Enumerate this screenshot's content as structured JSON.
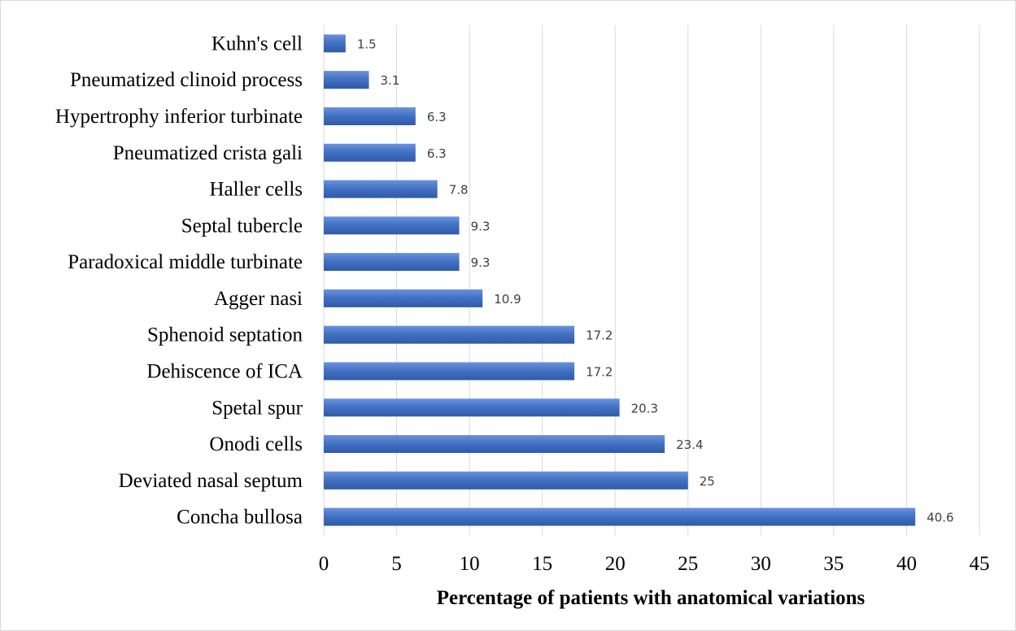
{
  "chart_data": {
    "type": "bar",
    "orientation": "horizontal",
    "categories": [
      "Concha bullosa",
      "Deviated nasal septum",
      "Onodi cells",
      "Spetal spur",
      "Dehiscence of ICA",
      "Sphenoid septation",
      "Agger nasi",
      "Paradoxical middle turbinate",
      "Septal tubercle",
      "Haller cells",
      "Pneumatized crista gali",
      "Hypertrophy inferior turbinate",
      "Pneumatized clinoid process",
      "Kuhn's cell"
    ],
    "values": [
      40.6,
      25,
      23.4,
      20.3,
      17.2,
      17.2,
      10.9,
      9.3,
      9.3,
      7.8,
      6.3,
      6.3,
      3.1,
      1.5
    ],
    "value_labels": [
      "40.6",
      "25",
      "23.4",
      "20.3",
      "17.2",
      "17.2",
      "10.9",
      "9.3",
      "9.3",
      "7.8",
      "6.3",
      "6.3",
      "3.1",
      "1.5"
    ],
    "title": "",
    "xlabel": "Percentage of patients with anatomical variations",
    "ylabel": "",
    "xlim": [
      0,
      45
    ],
    "x_ticks": [
      "0",
      "5",
      "10",
      "15",
      "20",
      "25",
      "30",
      "35",
      "40",
      "45"
    ],
    "grid": "vertical",
    "legend": "none",
    "bar_color": "#4472C4",
    "grid_color": "#d9d9d9"
  }
}
